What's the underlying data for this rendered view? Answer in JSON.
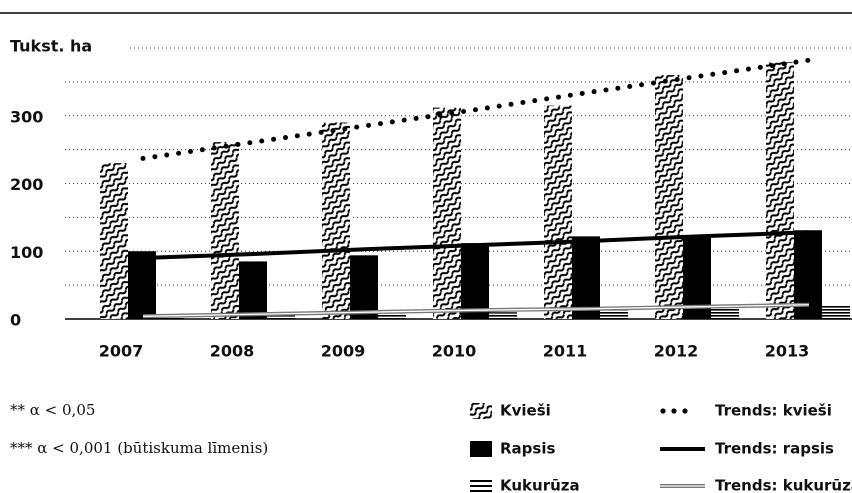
{
  "chart_data": {
    "type": "bar",
    "y_label": "Tukst. ha",
    "categories": [
      "2007",
      "2008",
      "2009",
      "2010",
      "2011",
      "2012",
      "2013"
    ],
    "series": [
      {
        "name": "Kvieši",
        "type": "bar",
        "pattern": "wave",
        "color": "#000000",
        "values": [
          230,
          261,
          290,
          312,
          315,
          360,
          379
        ]
      },
      {
        "name": "Rapsis",
        "type": "bar",
        "pattern": "solid",
        "color": "#000000",
        "values": [
          100,
          85,
          94,
          112,
          122,
          122,
          131
        ]
      },
      {
        "name": "Kukurūza",
        "type": "bar",
        "pattern": "stripes",
        "color": "#000000",
        "values": [
          5,
          6,
          8,
          10,
          13,
          17,
          20
        ]
      },
      {
        "name": "Trends: kvieši",
        "type": "line",
        "style": "dotted",
        "color": "#000000",
        "values": [
          237,
          261,
          285,
          309,
          334,
          358,
          382
        ]
      },
      {
        "name": "Trends: rapsis",
        "type": "line",
        "style": "solid",
        "color": "#000000",
        "values": [
          90,
          96,
          103,
          109,
          115,
          122,
          128
        ]
      },
      {
        "name": "Trends: kukurūza",
        "type": "line",
        "style": "double",
        "color": "#777777",
        "values": [
          4,
          7,
          10,
          13,
          15,
          18,
          21
        ]
      }
    ],
    "ylim": [
      0,
      400
    ],
    "yticks": [
      0,
      100,
      200,
      300
    ],
    "ygrid": [
      50,
      100,
      150,
      200,
      250,
      300,
      350,
      400
    ],
    "notes": [
      "** α < 0,05",
      "*** α < 0,001 (būtiskuma līmenis)"
    ]
  }
}
